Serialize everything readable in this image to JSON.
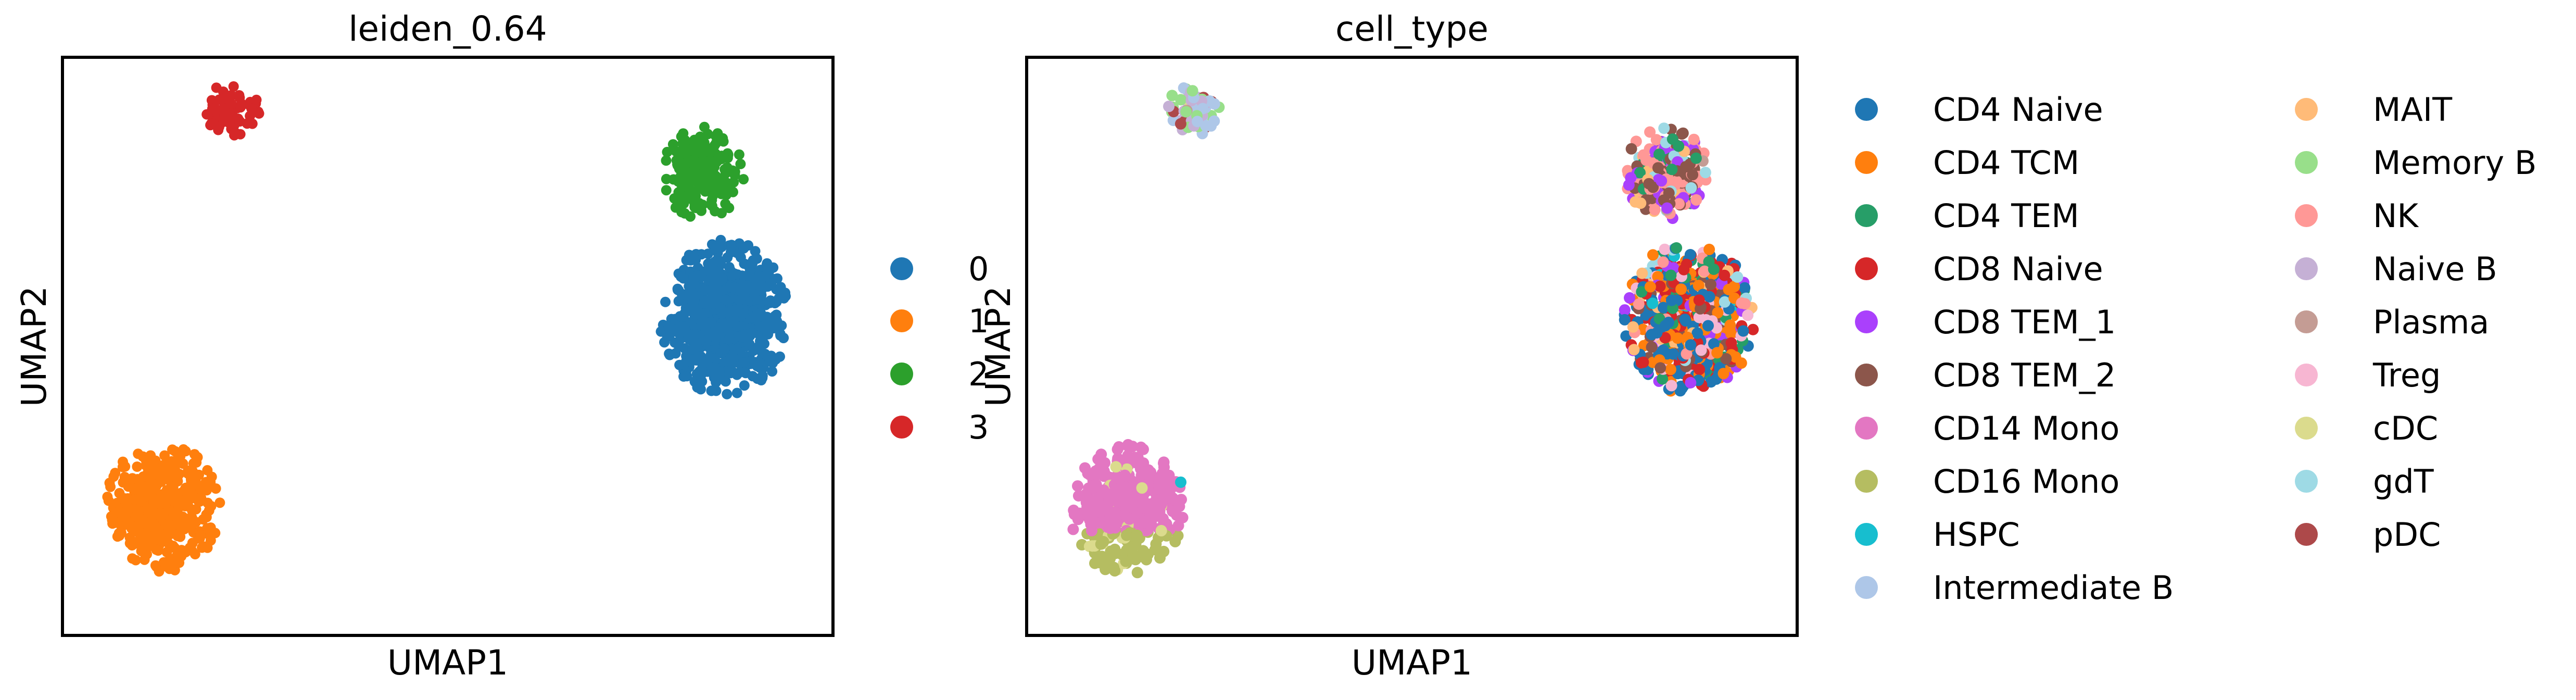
{
  "chart_data": [
    {
      "type": "scatter",
      "title": "leiden_0.64",
      "xlabel": "UMAP1",
      "ylabel": "UMAP2",
      "xlim": [
        0,
        10
      ],
      "ylim": [
        0,
        10
      ],
      "ticks": "none",
      "grid": false,
      "legend_placement": "right",
      "series": [
        {
          "name": "0",
          "color": "#1f77b4",
          "cluster": {
            "cx": 8.6,
            "cy": 5.5,
            "rx": 0.85,
            "ry": 1.35,
            "n": 700
          }
        },
        {
          "name": "1",
          "color": "#ff7f0e",
          "cluster": {
            "cx": 1.3,
            "cy": 2.2,
            "rx": 0.75,
            "ry": 1.15,
            "n": 420
          }
        },
        {
          "name": "2",
          "color": "#2ca02c",
          "cluster": {
            "cx": 8.3,
            "cy": 8.0,
            "rx": 0.55,
            "ry": 0.8,
            "n": 210
          }
        },
        {
          "name": "3",
          "color": "#d62728",
          "cluster": {
            "cx": 2.2,
            "cy": 9.1,
            "rx": 0.38,
            "ry": 0.45,
            "n": 70
          }
        }
      ]
    },
    {
      "type": "scatter",
      "title": "cell_type",
      "xlabel": "UMAP1",
      "ylabel": "UMAP2",
      "xlim": [
        0,
        10
      ],
      "ylim": [
        0,
        10
      ],
      "ticks": "none",
      "grid": false,
      "legend_placement": "right",
      "legend_columns": 2,
      "series": [
        {
          "name": "CD4 Naive",
          "color": "#1f77b4"
        },
        {
          "name": "CD4 TCM",
          "color": "#ff7f0e"
        },
        {
          "name": "CD4 TEM",
          "color": "#279e68"
        },
        {
          "name": "CD8 Naive",
          "color": "#d62728"
        },
        {
          "name": "CD8 TEM_1",
          "color": "#aa40fc"
        },
        {
          "name": "CD8 TEM_2",
          "color": "#8c564b"
        },
        {
          "name": "CD14 Mono",
          "color": "#e377c2"
        },
        {
          "name": "CD16 Mono",
          "color": "#b5bd61"
        },
        {
          "name": "HSPC",
          "color": "#17becf"
        },
        {
          "name": "Intermediate B",
          "color": "#aec7e8"
        },
        {
          "name": "MAIT",
          "color": "#ffbb78"
        },
        {
          "name": "Memory B",
          "color": "#98df8a"
        },
        {
          "name": "NK",
          "color": "#ff9896"
        },
        {
          "name": "Naive B",
          "color": "#c5b0d5"
        },
        {
          "name": "Plasma",
          "color": "#c49c94"
        },
        {
          "name": "Treg",
          "color": "#f7b6d2"
        },
        {
          "name": "cDC",
          "color": "#dbdb8d"
        },
        {
          "name": "gdT",
          "color": "#9edae5"
        },
        {
          "name": "pDC",
          "color": "#ad494a"
        }
      ]
    }
  ]
}
